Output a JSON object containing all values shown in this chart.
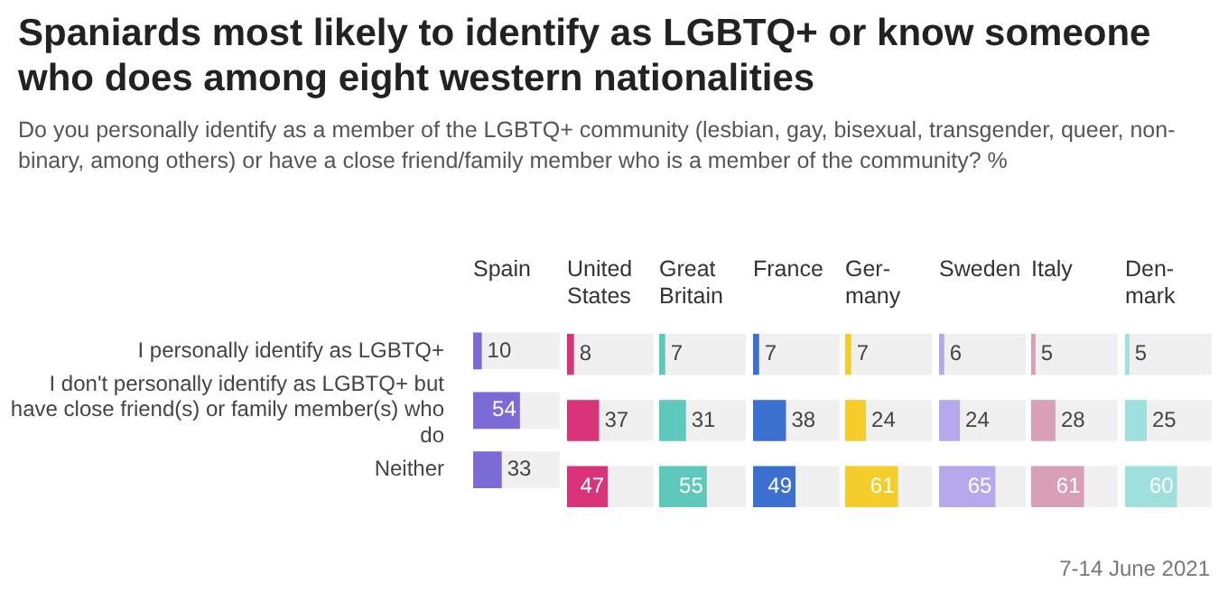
{
  "chart_data": [
    {
      "type": "other",
      "title": "Spaniards most likely to identify as LGBTQ+ or know someone who does among eight western nationalities",
      "subtitle": "Do you personally identify as a member of the LGBTQ+ community (lesbian, gay, bisexual, transgender, queer, non-binary, among others) or have a close friend/family member who is a member of the community? %",
      "annotations": [
        "7-14 June 2021"
      ]
    },
    {
      "type": "bar",
      "orientation": "horizontal",
      "title": "Spain",
      "categories": [
        "I personally identify as LGBTQ+",
        "I don't personally identify as LGBTQ+ but have close friend(s) or family member(s) who do",
        "Neither"
      ],
      "values": [
        10,
        54,
        33
      ],
      "color": "#7b6bd6",
      "xlim": [
        0,
        100
      ],
      "data_labels": true,
      "tick_labels": "y"
    },
    {
      "type": "bar",
      "orientation": "horizontal",
      "title": "United\nStates",
      "categories": [
        null,
        null,
        null
      ],
      "values": [
        8,
        37,
        47
      ],
      "color": "#d9337a",
      "xlim": [
        0,
        100
      ],
      "data_labels": true,
      "tick_labels": false
    },
    {
      "type": "bar",
      "orientation": "horizontal",
      "title": "Great\nBritain",
      "categories": [
        null,
        null,
        null
      ],
      "values": [
        7,
        31,
        55
      ],
      "color": "#5ec8bd",
      "xlim": [
        0,
        100
      ],
      "data_labels": true,
      "tick_labels": false
    },
    {
      "type": "bar",
      "orientation": "horizontal",
      "title": "France",
      "categories": [
        null,
        null,
        null
      ],
      "values": [
        7,
        38,
        49
      ],
      "color": "#3b6fd0",
      "xlim": [
        0,
        100
      ],
      "data_labels": true,
      "tick_labels": false
    },
    {
      "type": "bar",
      "orientation": "horizontal",
      "title": "Ger-\nmany",
      "categories": [
        null,
        null,
        null
      ],
      "values": [
        7,
        24,
        61
      ],
      "color": "#f5cd2b",
      "xlim": [
        0,
        100
      ],
      "data_labels": true,
      "tick_labels": false
    },
    {
      "type": "bar",
      "orientation": "horizontal",
      "title": "Sweden",
      "categories": [
        null,
        null,
        null
      ],
      "values": [
        6,
        24,
        65
      ],
      "color": "#b7a8ee",
      "xlim": [
        0,
        100
      ],
      "data_labels": true,
      "tick_labels": false
    },
    {
      "type": "bar",
      "orientation": "horizontal",
      "title": "Italy",
      "categories": [
        null,
        null,
        null
      ],
      "values": [
        5,
        28,
        61
      ],
      "color": "#d89fb7",
      "xlim": [
        0,
        100
      ],
      "data_labels": true,
      "tick_labels": false
    },
    {
      "type": "bar",
      "orientation": "horizontal",
      "title": "Den-\nmark",
      "categories": [
        null,
        null,
        null
      ],
      "values": [
        5,
        25,
        60
      ],
      "color": "#9fdfdc",
      "xlim": [
        0,
        100
      ],
      "data_labels": true,
      "tick_labels": false
    }
  ]
}
